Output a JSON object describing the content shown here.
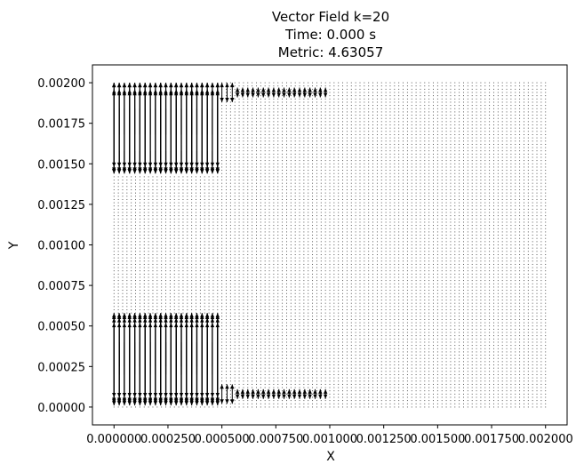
{
  "chart_data": {
    "type": "quiver",
    "title_lines": [
      "Vector Field k=20",
      "Time: 0.000 s",
      "Metric: 4.63057"
    ],
    "xlabel": "X",
    "ylabel": "Y",
    "xlim": [
      -0.0001,
      0.0021
    ],
    "ylim": [
      -0.00011,
      0.00211
    ],
    "x_ticks": [
      0.0,
      0.00025,
      0.0005,
      0.00075,
      0.001,
      0.00125,
      0.0015,
      0.00175,
      0.002
    ],
    "x_tick_labels": [
      "0.000000",
      "0.000250",
      "0.000500",
      "0.000750",
      "0.001000",
      "0.001250",
      "0.001500",
      "0.001750",
      "0.002000"
    ],
    "y_ticks": [
      0.0,
      0.00025,
      0.0005,
      0.00075,
      0.001,
      0.00125,
      0.0015,
      0.00175,
      0.002
    ],
    "y_tick_labels": [
      "0.00000",
      "0.00025",
      "0.00050",
      "0.00075",
      "0.00100",
      "0.00125",
      "0.00150",
      "0.00175",
      "0.00200"
    ],
    "grid": false,
    "legend": null,
    "arrow_color": "#000000",
    "grid_points": {
      "x_start": 0.0,
      "x_step": 2e-05,
      "x_count": 101,
      "y_start": 0.0,
      "y_step": 2e-05,
      "y_count": 101
    },
    "bands": [
      {
        "region": "upper-left jet",
        "x_range": [
          0.0,
          0.00048
        ],
        "y_range": [
          0.00144,
          0.002
        ],
        "direction": "vertical bidirectional",
        "magnitude": "large"
      },
      {
        "region": "lower-left jet",
        "x_range": [
          0.0,
          0.00048
        ],
        "y_range": [
          2e-05,
          0.00057
        ],
        "direction": "vertical bidirectional",
        "magnitude": "large"
      },
      {
        "region": "upper channel",
        "x_range": [
          0.0005,
          0.001
        ],
        "y_range": [
          0.00192,
          0.00196
        ],
        "direction": "vertical bidirectional",
        "magnitude": "small"
      },
      {
        "region": "lower channel",
        "x_range": [
          0.0005,
          0.001
        ],
        "y_range": [
          6e-05,
          0.0001
        ],
        "direction": "vertical bidirectional",
        "magnitude": "small"
      },
      {
        "region": "remaining domain",
        "x_range": [
          0.0,
          0.002
        ],
        "y_range": [
          0.0,
          0.002
        ],
        "direction": "none",
        "magnitude": "near zero (dots)"
      }
    ]
  }
}
